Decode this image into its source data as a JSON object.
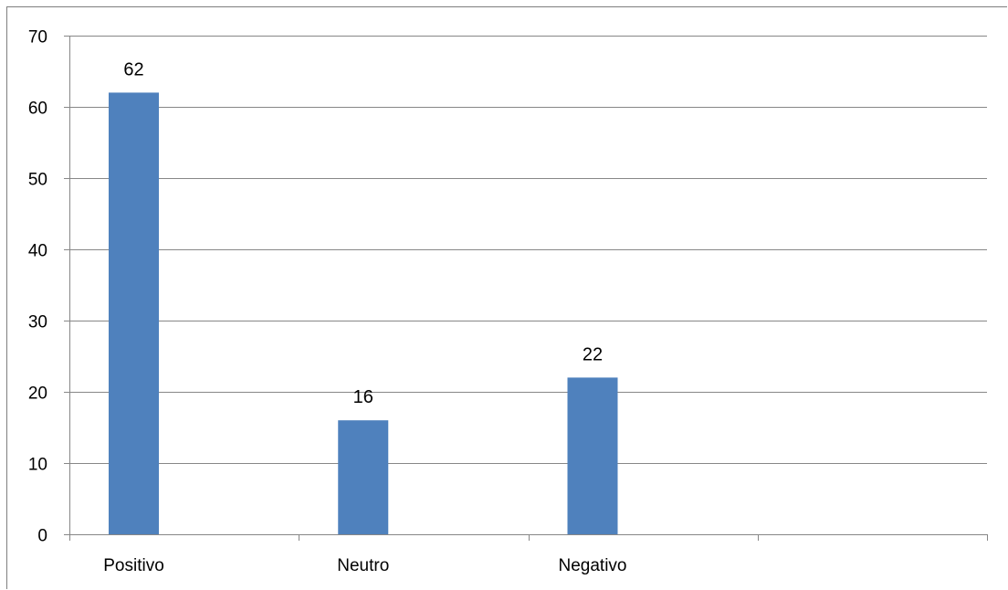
{
  "chart_data": {
    "type": "bar",
    "title": "",
    "xlabel": "",
    "ylabel": "",
    "categories": [
      "Positivo",
      "Neutro",
      "Negativo",
      ""
    ],
    "values": [
      62,
      16,
      22,
      null
    ],
    "ylim": [
      0,
      70
    ],
    "yticks": [
      0,
      10,
      20,
      30,
      40,
      50,
      60,
      70
    ],
    "grid": true,
    "legend": "none",
    "data_labels": true,
    "bar_color": "#4f81bd",
    "gridline_color": "#878787"
  }
}
